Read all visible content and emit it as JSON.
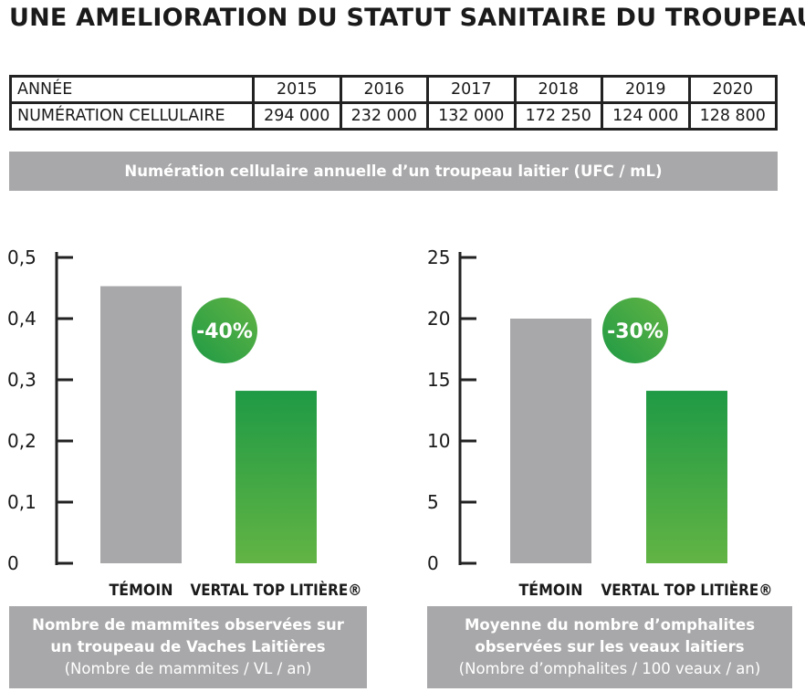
{
  "title": "UNE AMELIORATION DU STATUT SANITAIRE DU TROUPEAU",
  "table": {
    "label_row1": "ANNÉE",
    "label_row2": "NUMÉRATION CELLULAIRE",
    "years": [
      "2015",
      "2016",
      "2017",
      "2018",
      "2019",
      "2020"
    ],
    "values": [
      "294 000",
      "232 000",
      "132 000",
      "172 250",
      "124 000",
      "128 800"
    ]
  },
  "table_caption": "Numération cellulaire annuelle d’un troupeau laitier (UFC / mL)",
  "colors": {
    "gray": "#a8a8aa",
    "green_top": "#1f9a45",
    "green_bottom": "#62b444"
  },
  "chart_data": [
    {
      "type": "bar",
      "categories": [
        "TÉMOIN",
        "VERTAL TOP LITIÈRE®"
      ],
      "values": [
        0.453,
        0.282
      ],
      "ylim": [
        0,
        0.5
      ],
      "yticks": [
        "0",
        "0,1",
        "0,2",
        "0,3",
        "0,4",
        "0,5"
      ],
      "badge": "-40%",
      "caption_lines": [
        "Nombre de mammites observées sur",
        "un troupeau de Vaches Laitières",
        "(Nombre de mammites / VL / an)"
      ]
    },
    {
      "type": "bar",
      "categories": [
        "TÉMOIN",
        "VERTAL TOP LITIÈRE®"
      ],
      "values": [
        20,
        14.1
      ],
      "ylim": [
        0,
        25
      ],
      "yticks": [
        "0",
        "5",
        "10",
        "15",
        "20",
        "25"
      ],
      "badge": "-30%",
      "caption_lines": [
        "Moyenne du nombre d’omphalites",
        "observées sur les veaux laitiers",
        "(Nombre d’omphalites / 100 veaux / an)"
      ]
    }
  ]
}
